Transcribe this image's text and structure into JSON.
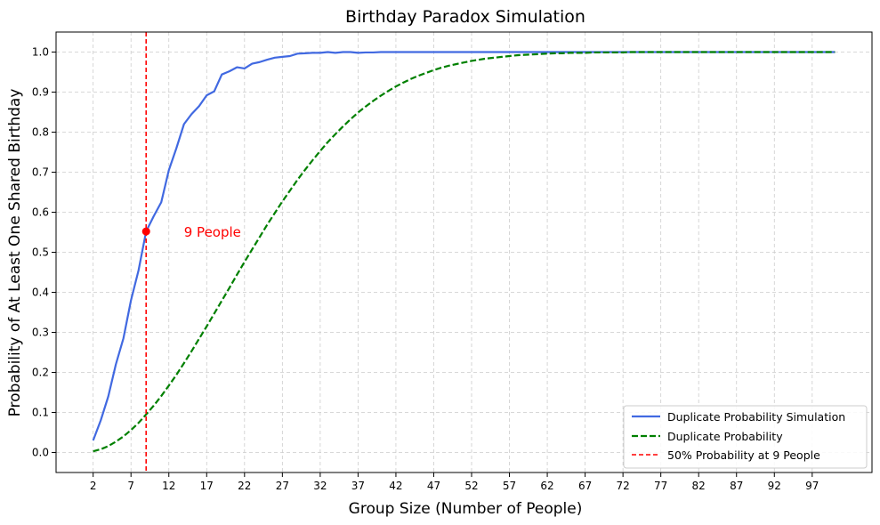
{
  "chart_data": {
    "type": "line",
    "title": "Birthday Paradox Simulation",
    "xlabel": "Group Size (Number of People)",
    "ylabel": "Probability of At Least One Shared Birthday",
    "xlim": [
      -2.9,
      104.9
    ],
    "ylim": [
      -0.05,
      1.05
    ],
    "xticks": [
      2,
      7,
      12,
      17,
      22,
      27,
      32,
      37,
      42,
      47,
      52,
      57,
      62,
      67,
      72,
      77,
      82,
      87,
      92,
      97
    ],
    "yticks": [
      0.0,
      0.1,
      0.2,
      0.3,
      0.4,
      0.5,
      0.6,
      0.7,
      0.8,
      0.9,
      1.0
    ],
    "ytick_labels": [
      "0.0",
      "0.1",
      "0.2",
      "0.3",
      "0.4",
      "0.5",
      "0.6",
      "0.7",
      "0.8",
      "0.9",
      "1.0"
    ],
    "grid": true,
    "legend_position": "bottom-right",
    "series": [
      {
        "name": "Duplicate Probability Simulation",
        "color": "#4169e1",
        "style": "solid",
        "x": [
          2,
          3,
          4,
          5,
          6,
          7,
          8,
          9,
          10,
          11,
          12,
          13,
          14,
          15,
          16,
          17,
          18,
          19,
          20,
          21,
          22,
          23,
          24,
          25,
          26,
          27,
          28,
          29,
          30,
          31,
          32,
          33,
          34,
          35,
          36,
          37,
          38,
          39,
          40,
          41,
          42,
          43,
          44,
          45,
          46,
          47,
          48,
          49,
          50,
          51,
          52,
          53,
          54,
          55,
          56,
          57,
          58,
          59,
          60,
          61,
          62,
          63,
          64,
          65,
          66,
          67,
          68,
          69,
          70,
          71,
          72,
          73,
          74,
          75,
          76,
          77,
          78,
          79,
          80,
          81,
          82,
          83,
          84,
          85,
          86,
          87,
          88,
          89,
          90,
          91,
          92,
          93,
          94,
          95,
          96,
          97,
          98,
          99,
          100
        ],
        "y": [
          0.03,
          0.08,
          0.14,
          0.22,
          0.285,
          0.38,
          0.455,
          0.552,
          0.59,
          0.625,
          0.705,
          0.76,
          0.82,
          0.845,
          0.865,
          0.892,
          0.902,
          0.944,
          0.952,
          0.962,
          0.959,
          0.971,
          0.975,
          0.981,
          0.986,
          0.988,
          0.99,
          0.996,
          0.997,
          0.998,
          0.998,
          1.0,
          0.998,
          1.0,
          1.0,
          0.998,
          0.999,
          0.999,
          1.0,
          1.0,
          1.0,
          1.0,
          1.0,
          1.0,
          1.0,
          1.0,
          1.0,
          1.0,
          1.0,
          1.0,
          1.0,
          1.0,
          1.0,
          1.0,
          1.0,
          1.0,
          1.0,
          1.0,
          1.0,
          1.0,
          1.0,
          1.0,
          1.0,
          1.0,
          1.0,
          1.0,
          1.0,
          1.0,
          1.0,
          1.0,
          1.0,
          1.0,
          1.0,
          1.0,
          1.0,
          1.0,
          1.0,
          1.0,
          1.0,
          1.0,
          1.0,
          1.0,
          1.0,
          1.0,
          1.0,
          1.0,
          1.0,
          1.0,
          1.0,
          1.0,
          1.0,
          1.0,
          1.0,
          1.0,
          1.0,
          1.0,
          1.0,
          1.0,
          1.0
        ]
      },
      {
        "name": "Duplicate Probability",
        "color": "#008000",
        "style": "dashed",
        "x": [
          2,
          3,
          4,
          5,
          6,
          7,
          8,
          9,
          10,
          11,
          12,
          13,
          14,
          15,
          16,
          17,
          18,
          19,
          20,
          21,
          22,
          23,
          24,
          25,
          26,
          27,
          28,
          29,
          30,
          31,
          32,
          33,
          34,
          35,
          36,
          37,
          38,
          39,
          40,
          41,
          42,
          43,
          44,
          45,
          46,
          47,
          48,
          49,
          50,
          51,
          52,
          53,
          54,
          55,
          56,
          57,
          58,
          59,
          60,
          61,
          62,
          63,
          64,
          65,
          66,
          67,
          68,
          69,
          70,
          71,
          72,
          73,
          74,
          75,
          76,
          77,
          78,
          79,
          80,
          81,
          82,
          83,
          84,
          85,
          86,
          87,
          88,
          89,
          90,
          91,
          92,
          93,
          94,
          95,
          96,
          97,
          98,
          99,
          100
        ],
        "y": [
          0.003,
          0.008,
          0.016,
          0.027,
          0.04,
          0.056,
          0.074,
          0.095,
          0.117,
          0.141,
          0.167,
          0.194,
          0.223,
          0.253,
          0.284,
          0.315,
          0.347,
          0.379,
          0.411,
          0.444,
          0.476,
          0.507,
          0.538,
          0.569,
          0.598,
          0.627,
          0.654,
          0.681,
          0.706,
          0.73,
          0.753,
          0.775,
          0.795,
          0.814,
          0.832,
          0.849,
          0.864,
          0.878,
          0.891,
          0.903,
          0.914,
          0.924,
          0.933,
          0.941,
          0.948,
          0.955,
          0.961,
          0.966,
          0.97,
          0.974,
          0.978,
          0.981,
          0.984,
          0.986,
          0.988,
          0.99,
          0.992,
          0.993,
          0.994,
          0.995,
          0.996,
          0.997,
          0.997,
          0.998,
          0.998,
          0.998,
          0.999,
          0.999,
          0.999,
          0.999,
          0.999,
          1.0,
          1.0,
          1.0,
          1.0,
          1.0,
          1.0,
          1.0,
          1.0,
          1.0,
          1.0,
          1.0,
          1.0,
          1.0,
          1.0,
          1.0,
          1.0,
          1.0,
          1.0,
          1.0,
          1.0,
          1.0,
          1.0,
          1.0,
          1.0,
          1.0,
          1.0,
          1.0,
          1.0
        ]
      }
    ],
    "threshold_line": {
      "name": "50% Probability at 9 People",
      "color": "#ff0000",
      "style": "dashed",
      "x": 9
    },
    "marker": {
      "x": 9,
      "y": 0.552,
      "color": "#ff0000"
    },
    "annotation": {
      "text": "9 People",
      "x": 14,
      "y": 0.55,
      "color": "#ff0000"
    }
  }
}
